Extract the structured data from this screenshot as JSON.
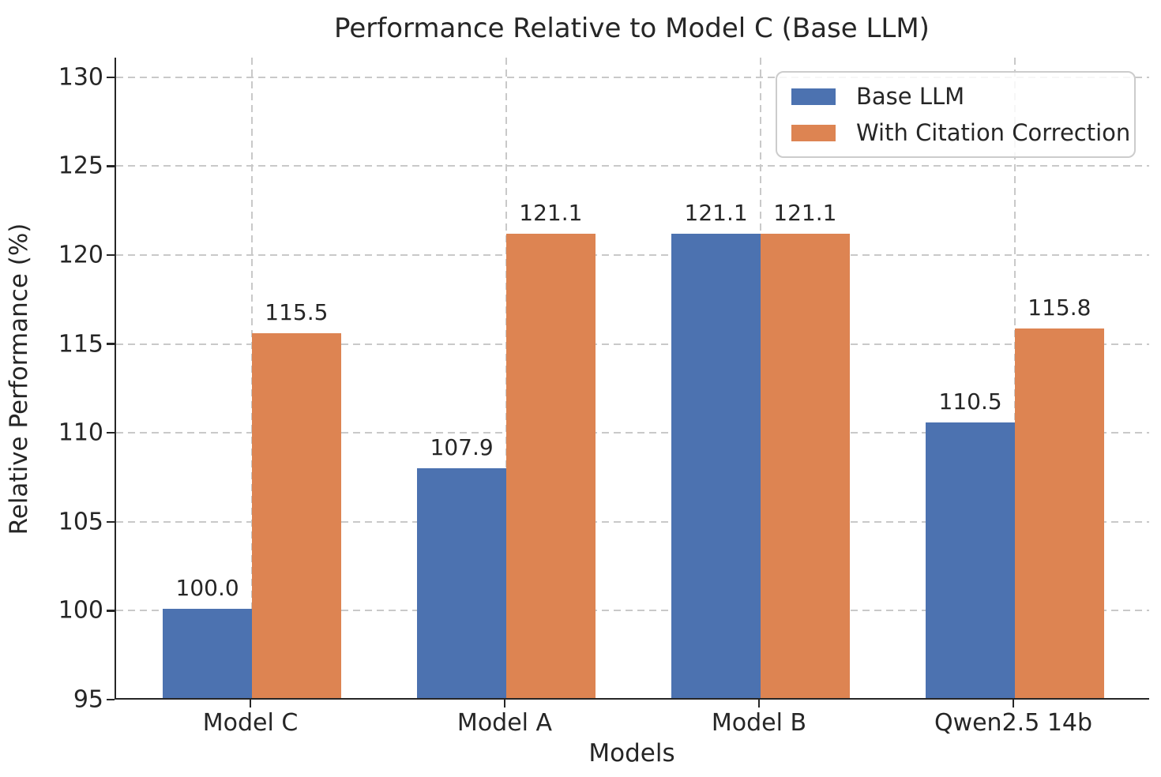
{
  "chart_data": {
    "type": "bar",
    "title": "Performance Relative to Model C (Base LLM)",
    "xlabel": "Models",
    "ylabel": "Relative Performance (%)",
    "categories": [
      "Model C",
      "Model A",
      "Model B",
      "Qwen2.5 14b"
    ],
    "series": [
      {
        "name": "Base LLM",
        "color": "#4C72B0",
        "values": [
          100.0,
          107.9,
          121.1,
          110.5
        ]
      },
      {
        "name": "With Citation Correction",
        "color": "#DD8452",
        "values": [
          115.5,
          121.1,
          121.1,
          115.8
        ]
      }
    ],
    "bar_value_labels": [
      [
        "100.0",
        "107.9",
        "121.1",
        "110.5"
      ],
      [
        "115.5",
        "121.1",
        "121.1",
        "115.8"
      ]
    ],
    "yticks": [
      "95",
      "100",
      "105",
      "110",
      "115",
      "120",
      "125",
      "130"
    ],
    "ylim": [
      95,
      131.1
    ],
    "grid": "dashed light-gray horizontal and vertical gridlines",
    "legend_position": "upper right",
    "style_colors": {
      "bar_blue": "#4C72B0",
      "bar_orange": "#DD8452",
      "grid": "#c9c9c9",
      "spine": "#262626",
      "text": "#262626",
      "legend_border": "#cccccc",
      "background": "#ffffff"
    }
  }
}
